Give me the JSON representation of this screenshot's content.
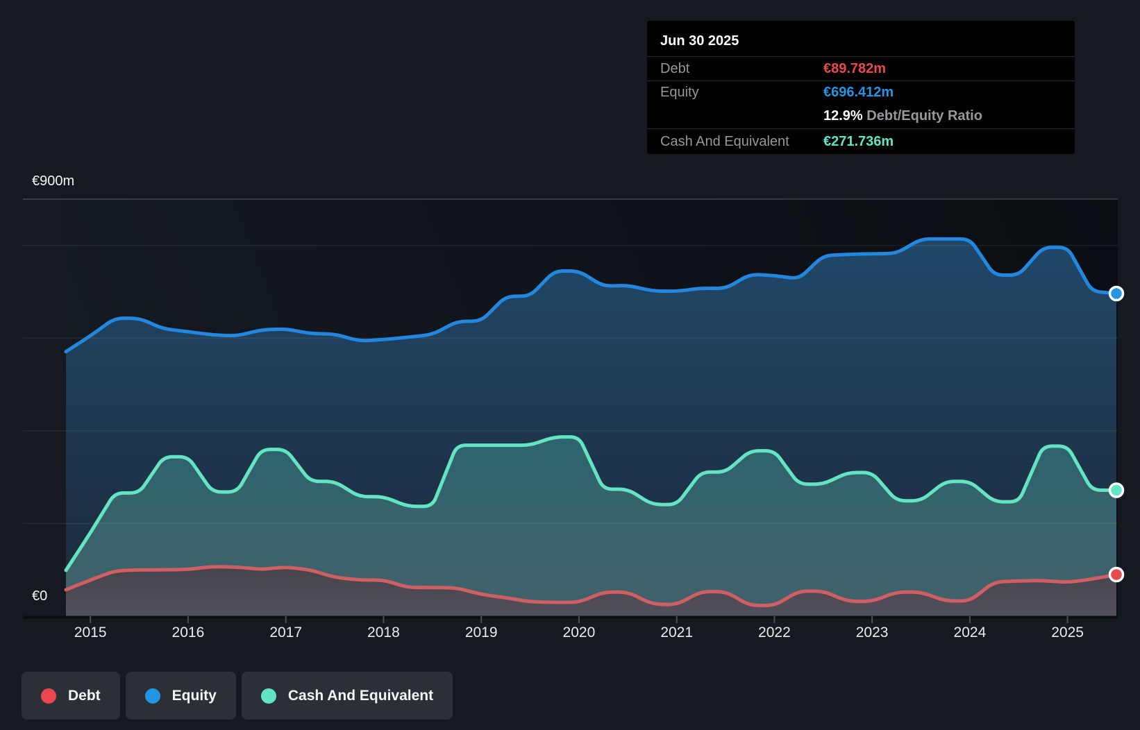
{
  "colors": {
    "background": "#161a20",
    "debt": "#e9484f",
    "equity": "#2494e4",
    "cash": "#61e5c5",
    "debt_line": "#d05f63",
    "equity_line": "#2487df",
    "cash_line": "#64e4c3",
    "grid": "#ffffff",
    "tick": "#4a5056",
    "x_label_color": "#e9ecee"
  },
  "tooltip": {
    "date": "Jun 30 2025",
    "rows": [
      {
        "label": "Debt",
        "value": "€89.782m"
      },
      {
        "label": "Equity",
        "value": "€696.412m"
      },
      {
        "label": "Cash And Equivalent",
        "value": "€271.736m"
      }
    ],
    "ratio_value": "12.9%",
    "ratio_label": "Debt/Equity Ratio"
  },
  "legend": {
    "items": [
      {
        "label": "Debt",
        "color_key": "debt"
      },
      {
        "label": "Equity",
        "color_key": "equity"
      },
      {
        "label": "Cash And Equivalent",
        "color_key": "cash"
      }
    ]
  },
  "chart_data": {
    "type": "area",
    "unit": "€m",
    "y_axis": {
      "top_label": "€900m",
      "zero_label": "€0",
      "min": 0,
      "max": 900,
      "gridlines_m": [
        900,
        800,
        600,
        400,
        200
      ]
    },
    "x_ticks": [
      2015,
      2016,
      2017,
      2018,
      2019,
      2020,
      2021,
      2022,
      2023,
      2024,
      2025
    ],
    "x_range": [
      2014.75,
      2025.5
    ],
    "x": [
      2014.75,
      2015.0,
      2015.25,
      2015.5,
      2015.75,
      2016.0,
      2016.25,
      2016.5,
      2016.75,
      2017.0,
      2017.25,
      2017.5,
      2017.75,
      2018.0,
      2018.25,
      2018.5,
      2018.75,
      2019.0,
      2019.25,
      2019.5,
      2019.75,
      2020.0,
      2020.25,
      2020.5,
      2020.75,
      2021.0,
      2021.25,
      2021.5,
      2021.75,
      2022.0,
      2022.25,
      2022.5,
      2022.75,
      2023.0,
      2023.25,
      2023.5,
      2023.75,
      2024.0,
      2024.25,
      2024.5,
      2024.75,
      2025.0,
      2025.25,
      2025.5
    ],
    "series": [
      {
        "name": "Debt",
        "color_key": "debt",
        "line_key": "debt_line",
        "values": [
          57,
          78,
          98,
          100,
          100,
          101,
          107,
          106,
          101,
          106,
          100,
          84,
          78,
          78,
          62,
          62,
          61,
          47,
          40,
          31,
          30,
          30,
          52,
          52,
          26,
          25,
          53,
          53,
          23,
          23,
          54,
          54,
          32,
          32,
          52,
          52,
          33,
          33,
          74,
          76,
          77,
          73,
          80,
          89.782
        ]
      },
      {
        "name": "Equity",
        "color_key": "equity",
        "line_key": "equity_line",
        "values": [
          571,
          605,
          643,
          643,
          620,
          614,
          607,
          605,
          618,
          620,
          610,
          609,
          594,
          597,
          602,
          608,
          636,
          637,
          690,
          691,
          745,
          745,
          712,
          714,
          702,
          701,
          708,
          707,
          738,
          735,
          728,
          778,
          781,
          782,
          783,
          814,
          814,
          814,
          736,
          736,
          796,
          796,
          701,
          696.412
        ]
      },
      {
        "name": "Cash And Equivalent",
        "color_key": "cash",
        "line_key": "cash_line",
        "values": [
          99,
          180,
          266,
          266,
          344,
          344,
          268,
          268,
          360,
          360,
          291,
          291,
          258,
          258,
          237,
          237,
          369,
          369,
          369,
          369,
          387,
          387,
          274,
          274,
          241,
          241,
          311,
          311,
          357,
          357,
          285,
          285,
          310,
          310,
          249,
          249,
          291,
          291,
          247,
          247,
          367,
          367,
          272,
          271.736
        ]
      }
    ],
    "final_values": {
      "debt": "€89.782m",
      "equity": "€696.412m",
      "cash": "€271.736m"
    }
  }
}
